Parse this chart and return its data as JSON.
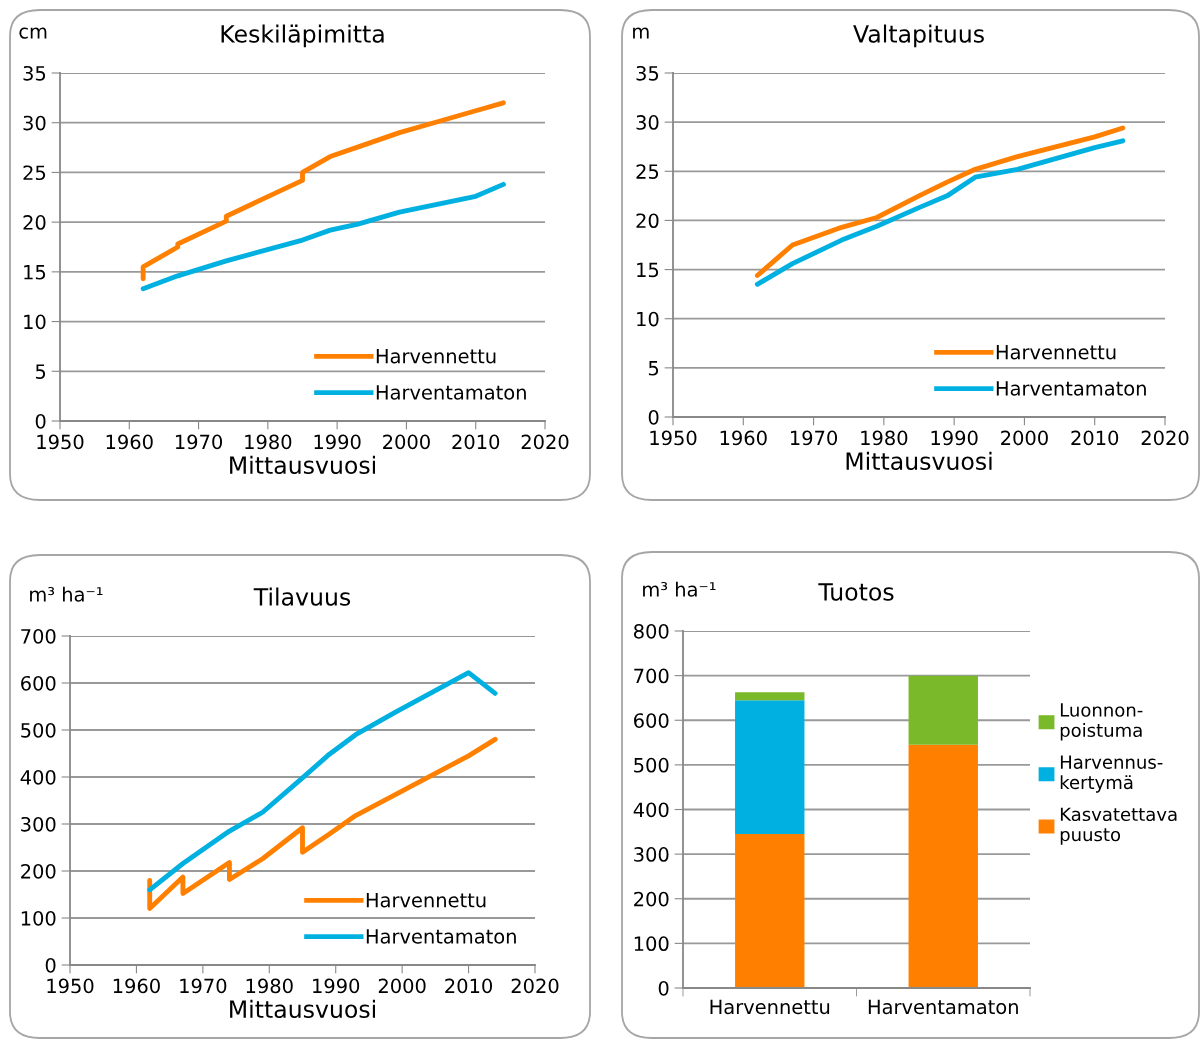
{
  "chart_data": [
    {
      "type": "line",
      "title": "Keskiläpimitta",
      "ylabel": "cm",
      "xlabel": "Mittausvuosi",
      "xlim": [
        1950,
        2020
      ],
      "xticks": [
        1950,
        1960,
        1970,
        1980,
        1990,
        2000,
        2010,
        2020
      ],
      "ylim": [
        0,
        35
      ],
      "yticks": [
        0,
        5,
        10,
        15,
        20,
        25,
        30,
        35
      ],
      "grid": "y",
      "legend": "bottom right",
      "line_style": "solid",
      "marker": "none",
      "series": [
        {
          "name": "Harvennettu",
          "color": "#ff8000",
          "x": [
            1962,
            1962,
            1967,
            1967,
            1974,
            1974,
            1985,
            1985,
            1989,
            1994,
            1999,
            2005,
            2010,
            2014
          ],
          "values": [
            14.3,
            15.5,
            17.5,
            17.8,
            20.1,
            20.6,
            24.2,
            25.0,
            26.6,
            27.8,
            29.0,
            30.2,
            31.2,
            32.0
          ]
        },
        {
          "name": "Harventamaton",
          "color": "#00b0e0",
          "x": [
            1962,
            1967,
            1974,
            1985,
            1989,
            1993,
            1999,
            2010,
            2014
          ],
          "values": [
            13.3,
            14.6,
            16.1,
            18.2,
            19.2,
            19.8,
            21.0,
            22.6,
            23.8
          ]
        }
      ]
    },
    {
      "type": "line",
      "title": "Valtapituus",
      "ylabel": "m",
      "xlabel": "Mittausvuosi",
      "xlim": [
        1950,
        2020
      ],
      "xticks": [
        1950,
        1960,
        1970,
        1980,
        1990,
        2000,
        2010,
        2020
      ],
      "ylim": [
        0,
        35
      ],
      "yticks": [
        0,
        5,
        10,
        15,
        20,
        25,
        30,
        35
      ],
      "grid": "y",
      "legend": "bottom right",
      "line_style": "solid",
      "marker": "none",
      "series": [
        {
          "name": "Harvennettu",
          "color": "#ff8000",
          "x": [
            1962,
            1967,
            1974,
            1979,
            1985,
            1989,
            1993,
            1999,
            2010,
            2014
          ],
          "values": [
            14.4,
            17.5,
            19.3,
            20.3,
            22.5,
            23.9,
            25.2,
            26.5,
            28.5,
            29.4
          ]
        },
        {
          "name": "Harventamaton",
          "color": "#00b0e0",
          "x": [
            1962,
            1967,
            1974,
            1979,
            1985,
            1989,
            1993,
            1999,
            2010,
            2014
          ],
          "values": [
            13.5,
            15.6,
            18.0,
            19.4,
            21.3,
            22.5,
            24.4,
            25.2,
            27.4,
            28.1
          ]
        }
      ]
    },
    {
      "type": "line",
      "title": "Tilavuus",
      "ylabel": "m³ ha⁻¹",
      "xlabel": "Mittausvuosi",
      "xlim": [
        1950,
        2020
      ],
      "xticks": [
        1950,
        1960,
        1970,
        1980,
        1990,
        2000,
        2010,
        2020
      ],
      "ylim": [
        0,
        700
      ],
      "yticks": [
        0,
        100,
        200,
        300,
        400,
        500,
        600,
        700
      ],
      "grid": "y",
      "legend": "bottom right",
      "line_style": "solid",
      "marker": "none",
      "series": [
        {
          "name": "Harvennettu",
          "color": "#ff8000",
          "x": [
            1962,
            1962,
            1967,
            1967,
            1974,
            1974,
            1979,
            1985,
            1985,
            1989,
            1993,
            2010,
            2014
          ],
          "values": [
            180,
            120,
            187,
            152,
            218,
            182,
            226,
            292,
            240,
            278,
            318,
            445,
            480
          ]
        },
        {
          "name": "Harventamaton",
          "color": "#00b0e0",
          "x": [
            1962,
            1967,
            1974,
            1979,
            1985,
            1989,
            1993,
            1999,
            2010,
            2014
          ],
          "values": [
            160,
            216,
            285,
            325,
            398,
            448,
            490,
            538,
            622,
            578
          ]
        }
      ]
    },
    {
      "type": "bar",
      "title": "Tuotos",
      "ylabel": "m³ ha⁻¹",
      "categories": [
        "Harvennettu",
        "Harventamaton"
      ],
      "ylim": [
        0,
        800
      ],
      "yticks": [
        0,
        100,
        200,
        300,
        400,
        500,
        600,
        700,
        800
      ],
      "grid": "y",
      "legend": "right",
      "stacked": true,
      "series": [
        {
          "name": "Kasvatettava\npuusto",
          "color": "#ff8000",
          "values": [
            345,
            545
          ]
        },
        {
          "name": "Harvennus-\nkertymä",
          "color": "#00b0e0",
          "values": [
            300,
            null
          ]
        },
        {
          "name": "Luonnon-\npoistuma",
          "color": "#7ab929",
          "values": [
            18,
            155
          ]
        }
      ]
    }
  ]
}
